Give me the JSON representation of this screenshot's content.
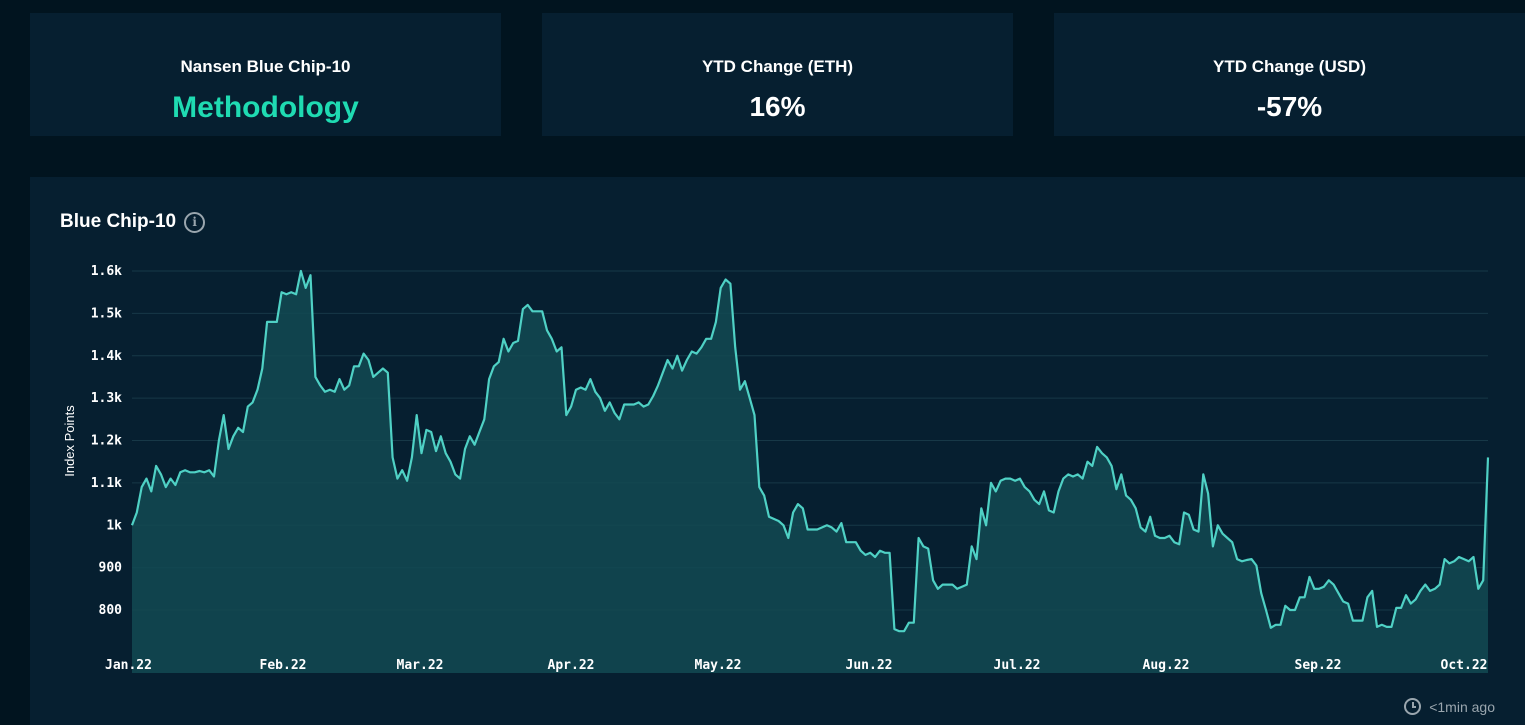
{
  "cards": [
    {
      "label": "Nansen Blue Chip-10",
      "value": "Methodology",
      "is_link": true
    },
    {
      "label": "YTD Change (ETH)",
      "value": "16%",
      "is_link": false
    },
    {
      "label": "YTD Change (USD)",
      "value": "-57%",
      "is_link": false
    }
  ],
  "chart_panel": {
    "title": "Blue Chip-10",
    "info_icon": "info-circle-icon",
    "updated_icon": "clock-icon",
    "updated_text": "<1min ago"
  },
  "colors": {
    "background": "#01141f",
    "panel": "#061f30",
    "accent": "#1fdbb2",
    "line": "#4fd1c5",
    "area": "#134a52"
  },
  "chart_data": {
    "type": "area",
    "title": "Blue Chip-10",
    "xlabel": "",
    "ylabel": "Index Points",
    "ylim": [
      700,
      1640
    ],
    "yticks": [
      800,
      900,
      1000,
      1100,
      1200,
      1300,
      1400,
      1500,
      1600
    ],
    "ytick_labels": [
      "800",
      "900",
      "1k",
      "1.1k",
      "1.2k",
      "1.3k",
      "1.4k",
      "1.5k",
      "1.6k"
    ],
    "xticks": [
      "Jan.22",
      "Feb.22",
      "Mar.22",
      "Apr.22",
      "May.22",
      "Jun.22",
      "Jul.22",
      "Aug.22",
      "Sep.22",
      "Oct.22"
    ],
    "grid": true,
    "series": [
      {
        "values": [
          1000,
          1030,
          1090,
          1110,
          1080,
          1140,
          1120,
          1090,
          1110,
          1095,
          1125,
          1130,
          1125,
          1125,
          1128,
          1125,
          1130,
          1115,
          1200,
          1260,
          1180,
          1210,
          1230,
          1220,
          1280,
          1290,
          1320,
          1370,
          1480,
          1480,
          1480,
          1550,
          1545,
          1550,
          1545,
          1600,
          1560,
          1590,
          1350,
          1330,
          1315,
          1320,
          1315,
          1345,
          1320,
          1330,
          1375,
          1375,
          1405,
          1390,
          1350,
          1360,
          1370,
          1360,
          1160,
          1110,
          1130,
          1105,
          1160,
          1260,
          1170,
          1225,
          1220,
          1175,
          1210,
          1170,
          1150,
          1120,
          1110,
          1180,
          1210,
          1190,
          1220,
          1250,
          1345,
          1375,
          1385,
          1440,
          1410,
          1430,
          1435,
          1510,
          1520,
          1505,
          1505,
          1505,
          1460,
          1440,
          1410,
          1420,
          1260,
          1280,
          1320,
          1325,
          1320,
          1345,
          1315,
          1300,
          1270,
          1290,
          1265,
          1250,
          1285,
          1285,
          1285,
          1290,
          1280,
          1285,
          1305,
          1330,
          1360,
          1390,
          1370,
          1400,
          1365,
          1390,
          1410,
          1405,
          1420,
          1440,
          1440,
          1480,
          1560,
          1580,
          1570,
          1420,
          1320,
          1340,
          1300,
          1260,
          1090,
          1070,
          1020,
          1015,
          1010,
          1000,
          970,
          1030,
          1050,
          1040,
          990,
          990,
          990,
          995,
          1000,
          995,
          985,
          1005,
          960,
          960,
          960,
          940,
          930,
          935,
          925,
          940,
          935,
          935,
          755,
          750,
          750,
          770,
          770,
          970,
          950,
          945,
          870,
          850,
          860,
          860,
          860,
          850,
          855,
          860,
          950,
          920,
          1040,
          1000,
          1100,
          1080,
          1105,
          1110,
          1110,
          1105,
          1110,
          1090,
          1080,
          1060,
          1050,
          1080,
          1035,
          1030,
          1080,
          1110,
          1120,
          1115,
          1120,
          1110,
          1150,
          1140,
          1185,
          1170,
          1160,
          1140,
          1085,
          1120,
          1070,
          1060,
          1040,
          995,
          985,
          1020,
          975,
          970,
          970,
          975,
          960,
          955,
          1030,
          1025,
          990,
          985,
          1120,
          1075,
          950,
          1000,
          980,
          970,
          960,
          920,
          915,
          918,
          920,
          905,
          840,
          800,
          758,
          765,
          765,
          810,
          800,
          800,
          830,
          830,
          878,
          850,
          850,
          855,
          870,
          860,
          840,
          820,
          815,
          775,
          775,
          775,
          830,
          845,
          760,
          765,
          760,
          760,
          805,
          805,
          835,
          815,
          825,
          845,
          860,
          845,
          850,
          860,
          920,
          910,
          915,
          925,
          920,
          915,
          925,
          850,
          870,
          1160
        ]
      }
    ]
  }
}
